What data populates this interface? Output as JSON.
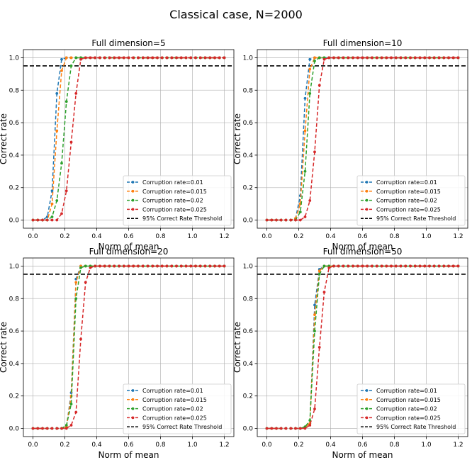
{
  "figure": {
    "suptitle": "Classical case, N=2000"
  },
  "threshold": {
    "value": 0.95,
    "label": "95% Correct Rate Threshold"
  },
  "xticks": [
    "0.0",
    "0.2",
    "0.4",
    "0.6",
    "0.8",
    "1.0",
    "1.2"
  ],
  "yticks": [
    "0.0",
    "0.2",
    "0.4",
    "0.6",
    "0.8",
    "1.0"
  ],
  "chart_data": [
    {
      "type": "line",
      "title": "Full dimension=5",
      "xlabel": "Norm of mean",
      "ylabel": "Correct rate",
      "xlim": [
        -0.06,
        1.26
      ],
      "ylim": [
        -0.05,
        1.05
      ],
      "grid": true,
      "legend": "lower-right",
      "x": [
        0.0,
        0.03,
        0.06,
        0.09,
        0.12,
        0.15,
        0.18,
        0.21,
        0.24,
        0.27,
        0.3,
        0.33,
        0.36,
        0.39,
        0.42,
        0.45,
        0.48,
        0.51,
        0.54,
        0.57,
        0.6,
        0.63,
        0.66,
        0.69,
        0.72,
        0.75,
        0.78,
        0.81,
        0.84,
        0.87,
        0.9,
        0.93,
        0.96,
        0.99,
        1.02,
        1.05,
        1.08,
        1.11,
        1.14,
        1.17,
        1.2
      ],
      "series": [
        {
          "name": "Corruption rate=0.01",
          "color": "#1f77b4",
          "values": [
            0,
            0,
            0,
            0.02,
            0.18,
            0.78,
            0.99,
            1,
            1,
            1,
            1,
            1,
            1,
            1,
            1,
            1,
            1,
            1,
            1,
            1,
            1,
            1,
            1,
            1,
            1,
            1,
            1,
            1,
            1,
            1,
            1,
            1,
            1,
            1,
            1,
            1,
            1,
            1,
            1,
            1,
            1
          ]
        },
        {
          "name": "Corruption rate=0.015",
          "color": "#ff7f0e",
          "values": [
            0,
            0,
            0,
            0,
            0.1,
            0.55,
            0.92,
            1,
            1,
            1,
            1,
            1,
            1,
            1,
            1,
            1,
            1,
            1,
            1,
            1,
            1,
            1,
            1,
            1,
            1,
            1,
            1,
            1,
            1,
            1,
            1,
            1,
            1,
            1,
            1,
            1,
            1,
            1,
            1,
            1,
            1
          ]
        },
        {
          "name": "Corruption rate=0.02",
          "color": "#2ca02c",
          "values": [
            0,
            0,
            0,
            0,
            0.02,
            0.12,
            0.35,
            0.73,
            0.95,
            1,
            1,
            1,
            1,
            1,
            1,
            1,
            1,
            1,
            1,
            1,
            1,
            1,
            1,
            1,
            1,
            1,
            1,
            1,
            1,
            1,
            1,
            1,
            1,
            1,
            1,
            1,
            1,
            1,
            1,
            1,
            1
          ]
        },
        {
          "name": "Corruption rate=0.025",
          "color": "#d62728",
          "values": [
            0,
            0,
            0,
            0,
            0,
            0,
            0.04,
            0.18,
            0.48,
            0.78,
            0.99,
            1,
            1,
            1,
            1,
            1,
            1,
            1,
            1,
            1,
            1,
            1,
            1,
            1,
            1,
            1,
            1,
            1,
            1,
            1,
            1,
            1,
            1,
            1,
            1,
            1,
            1,
            1,
            1,
            1,
            1
          ]
        }
      ]
    },
    {
      "type": "line",
      "title": "Full dimension=10",
      "xlabel": "Norm of mean",
      "ylabel": "Correct rate",
      "xlim": [
        -0.06,
        1.26
      ],
      "ylim": [
        -0.05,
        1.05
      ],
      "grid": true,
      "legend": "lower-right",
      "x": [
        0.0,
        0.03,
        0.06,
        0.09,
        0.12,
        0.15,
        0.18,
        0.21,
        0.24,
        0.27,
        0.3,
        0.33,
        0.36,
        0.39,
        0.42,
        0.45,
        0.48,
        0.51,
        0.54,
        0.57,
        0.6,
        0.63,
        0.66,
        0.69,
        0.72,
        0.75,
        0.78,
        0.81,
        0.84,
        0.87,
        0.9,
        0.93,
        0.96,
        0.99,
        1.02,
        1.05,
        1.08,
        1.11,
        1.14,
        1.17,
        1.2
      ],
      "series": [
        {
          "name": "Corruption rate=0.01",
          "color": "#1f77b4",
          "values": [
            0,
            0,
            0,
            0,
            0,
            0,
            0.01,
            0.15,
            0.75,
            0.99,
            1,
            1,
            1,
            1,
            1,
            1,
            1,
            1,
            1,
            1,
            1,
            1,
            1,
            1,
            1,
            1,
            1,
            1,
            1,
            1,
            1,
            1,
            1,
            1,
            1,
            1,
            1,
            1,
            1,
            1,
            1
          ]
        },
        {
          "name": "Corruption rate=0.015",
          "color": "#ff7f0e",
          "values": [
            0,
            0,
            0,
            0,
            0,
            0,
            0.01,
            0.1,
            0.55,
            0.93,
            1,
            1,
            1,
            1,
            1,
            1,
            1,
            1,
            1,
            1,
            1,
            1,
            1,
            1,
            1,
            1,
            1,
            1,
            1,
            1,
            1,
            1,
            1,
            1,
            1,
            1,
            1,
            1,
            1,
            1,
            1
          ]
        },
        {
          "name": "Corruption rate=0.02",
          "color": "#2ca02c",
          "values": [
            0,
            0,
            0,
            0,
            0,
            0,
            0,
            0.05,
            0.3,
            0.78,
            0.98,
            1,
            1,
            1,
            1,
            1,
            1,
            1,
            1,
            1,
            1,
            1,
            1,
            1,
            1,
            1,
            1,
            1,
            1,
            1,
            1,
            1,
            1,
            1,
            1,
            1,
            1,
            1,
            1,
            1,
            1
          ]
        },
        {
          "name": "Corruption rate=0.025",
          "color": "#d62728",
          "values": [
            0,
            0,
            0,
            0,
            0,
            0,
            0,
            0,
            0.02,
            0.12,
            0.42,
            0.83,
            0.99,
            1,
            1,
            1,
            1,
            1,
            1,
            1,
            1,
            1,
            1,
            1,
            1,
            1,
            1,
            1,
            1,
            1,
            1,
            1,
            1,
            1,
            1,
            1,
            1,
            1,
            1,
            1,
            1
          ]
        }
      ]
    },
    {
      "type": "line",
      "title": "Full dimension=20",
      "xlabel": "Norm of mean",
      "ylabel": "Correct rate",
      "xlim": [
        -0.06,
        1.26
      ],
      "ylim": [
        -0.05,
        1.05
      ],
      "grid": true,
      "legend": "lower-right",
      "x": [
        0.0,
        0.03,
        0.06,
        0.09,
        0.12,
        0.15,
        0.18,
        0.21,
        0.24,
        0.27,
        0.3,
        0.33,
        0.36,
        0.39,
        0.42,
        0.45,
        0.48,
        0.51,
        0.54,
        0.57,
        0.6,
        0.63,
        0.66,
        0.69,
        0.72,
        0.75,
        0.78,
        0.81,
        0.84,
        0.87,
        0.9,
        0.93,
        0.96,
        0.99,
        1.02,
        1.05,
        1.08,
        1.11,
        1.14,
        1.17,
        1.2
      ],
      "series": [
        {
          "name": "Corruption rate=0.01",
          "color": "#1f77b4",
          "values": [
            0,
            0,
            0,
            0,
            0,
            0,
            0,
            0.01,
            0.22,
            0.92,
            1,
            1,
            1,
            1,
            1,
            1,
            1,
            1,
            1,
            1,
            1,
            1,
            1,
            1,
            1,
            1,
            1,
            1,
            1,
            1,
            1,
            1,
            1,
            1,
            1,
            1,
            1,
            1,
            1,
            1,
            1
          ]
        },
        {
          "name": "Corruption rate=0.015",
          "color": "#ff7f0e",
          "values": [
            0,
            0,
            0,
            0,
            0,
            0,
            0,
            0.01,
            0.2,
            0.9,
            1,
            1,
            1,
            1,
            1,
            1,
            1,
            1,
            1,
            1,
            1,
            1,
            1,
            1,
            1,
            1,
            1,
            1,
            1,
            1,
            1,
            1,
            1,
            1,
            1,
            1,
            1,
            1,
            1,
            1,
            1
          ]
        },
        {
          "name": "Corruption rate=0.02",
          "color": "#2ca02c",
          "values": [
            0,
            0,
            0,
            0,
            0,
            0,
            0,
            0.02,
            0.15,
            0.8,
            0.99,
            1,
            1,
            1,
            1,
            1,
            1,
            1,
            1,
            1,
            1,
            1,
            1,
            1,
            1,
            1,
            1,
            1,
            1,
            1,
            1,
            1,
            1,
            1,
            1,
            1,
            1,
            1,
            1,
            1,
            1
          ]
        },
        {
          "name": "Corruption rate=0.025",
          "color": "#d62728",
          "values": [
            0,
            0,
            0,
            0,
            0,
            0,
            0,
            0,
            0.02,
            0.1,
            0.55,
            0.9,
            0.99,
            1,
            1,
            1,
            1,
            1,
            1,
            1,
            1,
            1,
            1,
            1,
            1,
            1,
            1,
            1,
            1,
            1,
            1,
            1,
            1,
            1,
            1,
            1,
            1,
            1,
            1,
            1,
            1
          ]
        }
      ]
    },
    {
      "type": "line",
      "title": "Full dimension=50",
      "xlabel": "Norm of mean",
      "ylabel": "Correct rate",
      "xlim": [
        -0.06,
        1.26
      ],
      "ylim": [
        -0.05,
        1.05
      ],
      "grid": true,
      "legend": "lower-right",
      "x": [
        0.0,
        0.03,
        0.06,
        0.09,
        0.12,
        0.15,
        0.18,
        0.21,
        0.24,
        0.27,
        0.3,
        0.33,
        0.36,
        0.39,
        0.42,
        0.45,
        0.48,
        0.51,
        0.54,
        0.57,
        0.6,
        0.63,
        0.66,
        0.69,
        0.72,
        0.75,
        0.78,
        0.81,
        0.84,
        0.87,
        0.9,
        0.93,
        0.96,
        0.99,
        1.02,
        1.05,
        1.08,
        1.11,
        1.14,
        1.17,
        1.2
      ],
      "series": [
        {
          "name": "Corruption rate=0.01",
          "color": "#1f77b4",
          "values": [
            0,
            0,
            0,
            0,
            0,
            0,
            0,
            0,
            0.01,
            0.03,
            0.76,
            0.98,
            1,
            1,
            1,
            1,
            1,
            1,
            1,
            1,
            1,
            1,
            1,
            1,
            1,
            1,
            1,
            1,
            1,
            1,
            1,
            1,
            1,
            1,
            1,
            1,
            1,
            1,
            1,
            1,
            1
          ]
        },
        {
          "name": "Corruption rate=0.015",
          "color": "#ff7f0e",
          "values": [
            0,
            0,
            0,
            0,
            0,
            0,
            0,
            0,
            0.01,
            0.03,
            0.7,
            0.97,
            1,
            1,
            1,
            1,
            1,
            1,
            1,
            1,
            1,
            1,
            1,
            1,
            1,
            1,
            1,
            1,
            1,
            1,
            1,
            1,
            1,
            1,
            1,
            1,
            1,
            1,
            1,
            1,
            1
          ]
        },
        {
          "name": "Corruption rate=0.02",
          "color": "#2ca02c",
          "values": [
            0,
            0,
            0,
            0,
            0,
            0,
            0,
            0,
            0.01,
            0.05,
            0.6,
            0.95,
            1,
            1,
            1,
            1,
            1,
            1,
            1,
            1,
            1,
            1,
            1,
            1,
            1,
            1,
            1,
            1,
            1,
            1,
            1,
            1,
            1,
            1,
            1,
            1,
            1,
            1,
            1,
            1,
            1
          ]
        },
        {
          "name": "Corruption rate=0.025",
          "color": "#d62728",
          "values": [
            0,
            0,
            0,
            0,
            0,
            0,
            0,
            0,
            0,
            0.02,
            0.12,
            0.5,
            0.84,
            0.99,
            1,
            1,
            1,
            1,
            1,
            1,
            1,
            1,
            1,
            1,
            1,
            1,
            1,
            1,
            1,
            1,
            1,
            1,
            1,
            1,
            1,
            1,
            1,
            1,
            1,
            1,
            1
          ]
        }
      ]
    }
  ]
}
